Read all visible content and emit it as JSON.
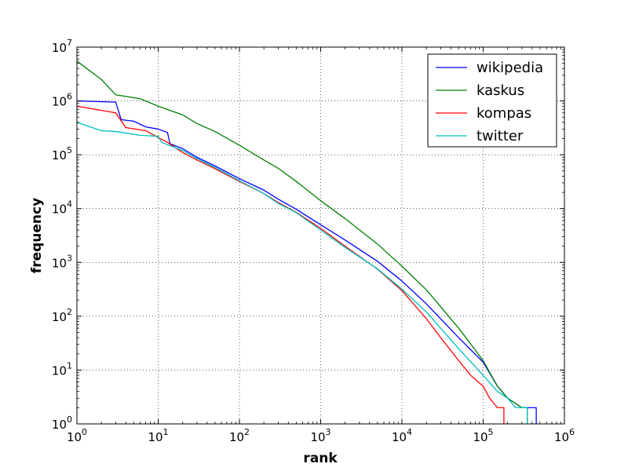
{
  "chart_data": {
    "type": "line",
    "title": "",
    "xlabel": "rank",
    "ylabel": "frequency",
    "xscale": "log",
    "yscale": "log",
    "xlim": [
      1,
      1000000
    ],
    "ylim": [
      1,
      10000000
    ],
    "x_ticks": [
      {
        "base": "10",
        "exp": "0",
        "value": 1
      },
      {
        "base": "10",
        "exp": "1",
        "value": 10
      },
      {
        "base": "10",
        "exp": "2",
        "value": 100
      },
      {
        "base": "10",
        "exp": "3",
        "value": 1000
      },
      {
        "base": "10",
        "exp": "4",
        "value": 10000
      },
      {
        "base": "10",
        "exp": "5",
        "value": 100000
      },
      {
        "base": "10",
        "exp": "6",
        "value": 1000000
      }
    ],
    "y_ticks": [
      {
        "base": "10",
        "exp": "0",
        "value": 1
      },
      {
        "base": "10",
        "exp": "1",
        "value": 10
      },
      {
        "base": "10",
        "exp": "2",
        "value": 100
      },
      {
        "base": "10",
        "exp": "3",
        "value": 1000
      },
      {
        "base": "10",
        "exp": "4",
        "value": 10000
      },
      {
        "base": "10",
        "exp": "5",
        "value": 100000
      },
      {
        "base": "10",
        "exp": "6",
        "value": 1000000
      },
      {
        "base": "10",
        "exp": "7",
        "value": 10000000
      }
    ],
    "grid": true,
    "legend_position": "top-right",
    "series": [
      {
        "name": "wikipedia",
        "color": "#0000ff",
        "points": [
          [
            1,
            1000000
          ],
          [
            3,
            950000
          ],
          [
            3.5,
            450000
          ],
          [
            5,
            420000
          ],
          [
            7,
            330000
          ],
          [
            10,
            300000
          ],
          [
            13,
            260000
          ],
          [
            14,
            160000
          ],
          [
            20,
            130000
          ],
          [
            30,
            90000
          ],
          [
            50,
            62000
          ],
          [
            100,
            36000
          ],
          [
            200,
            22000
          ],
          [
            300,
            15000
          ],
          [
            500,
            9700
          ],
          [
            1000,
            5000
          ],
          [
            2000,
            2600
          ],
          [
            5000,
            1050
          ],
          [
            10000,
            450
          ],
          [
            20000,
            170
          ],
          [
            50000,
            40
          ],
          [
            100000,
            14
          ],
          [
            150000,
            5
          ],
          [
            200000,
            3
          ],
          [
            300000,
            2
          ],
          [
            400000,
            2
          ],
          [
            450000,
            2
          ],
          [
            450000,
            1
          ]
        ]
      },
      {
        "name": "kaskus",
        "color": "#008000",
        "points": [
          [
            1,
            5500000
          ],
          [
            2,
            2500000
          ],
          [
            3,
            1300000
          ],
          [
            6,
            1100000
          ],
          [
            10,
            800000
          ],
          [
            20,
            550000
          ],
          [
            30,
            380000
          ],
          [
            50,
            270000
          ],
          [
            100,
            150000
          ],
          [
            200,
            80000
          ],
          [
            300,
            56000
          ],
          [
            500,
            32000
          ],
          [
            1000,
            14000
          ],
          [
            2000,
            6500
          ],
          [
            5000,
            2200
          ],
          [
            10000,
            850
          ],
          [
            20000,
            310
          ],
          [
            50000,
            60
          ],
          [
            100000,
            15
          ],
          [
            150000,
            5
          ],
          [
            200000,
            3
          ],
          [
            300000,
            2
          ],
          [
            350000,
            2
          ],
          [
            350000,
            1
          ]
        ]
      },
      {
        "name": "kompas",
        "color": "#ff0000",
        "points": [
          [
            1,
            800000
          ],
          [
            3,
            600000
          ],
          [
            4,
            320000
          ],
          [
            7,
            280000
          ],
          [
            10,
            210000
          ],
          [
            13,
            170000
          ],
          [
            20,
            110000
          ],
          [
            30,
            80000
          ],
          [
            50,
            55000
          ],
          [
            100,
            32000
          ],
          [
            200,
            19000
          ],
          [
            300,
            13000
          ],
          [
            500,
            8500
          ],
          [
            1000,
            4300
          ],
          [
            2000,
            2000
          ],
          [
            5000,
            750
          ],
          [
            10000,
            300
          ],
          [
            20000,
            90
          ],
          [
            30000,
            40
          ],
          [
            50000,
            15
          ],
          [
            70000,
            8
          ],
          [
            100000,
            5
          ],
          [
            120000,
            3
          ],
          [
            150000,
            2
          ],
          [
            180000,
            2
          ],
          [
            180000,
            1
          ]
        ]
      },
      {
        "name": "twitter",
        "color": "#00bfbf",
        "points": [
          [
            1,
            400000
          ],
          [
            2,
            280000
          ],
          [
            3,
            270000
          ],
          [
            6,
            230000
          ],
          [
            10,
            220000
          ],
          [
            11,
            170000
          ],
          [
            20,
            120000
          ],
          [
            30,
            85000
          ],
          [
            50,
            58000
          ],
          [
            100,
            33000
          ],
          [
            200,
            19000
          ],
          [
            300,
            12500
          ],
          [
            500,
            8400
          ],
          [
            1000,
            4000
          ],
          [
            2000,
            1900
          ],
          [
            5000,
            760
          ],
          [
            10000,
            320
          ],
          [
            20000,
            120
          ],
          [
            50000,
            25
          ],
          [
            100000,
            8
          ],
          [
            150000,
            4
          ],
          [
            200000,
            3
          ],
          [
            250000,
            2
          ],
          [
            350000,
            2
          ],
          [
            350000,
            1
          ]
        ]
      }
    ]
  }
}
